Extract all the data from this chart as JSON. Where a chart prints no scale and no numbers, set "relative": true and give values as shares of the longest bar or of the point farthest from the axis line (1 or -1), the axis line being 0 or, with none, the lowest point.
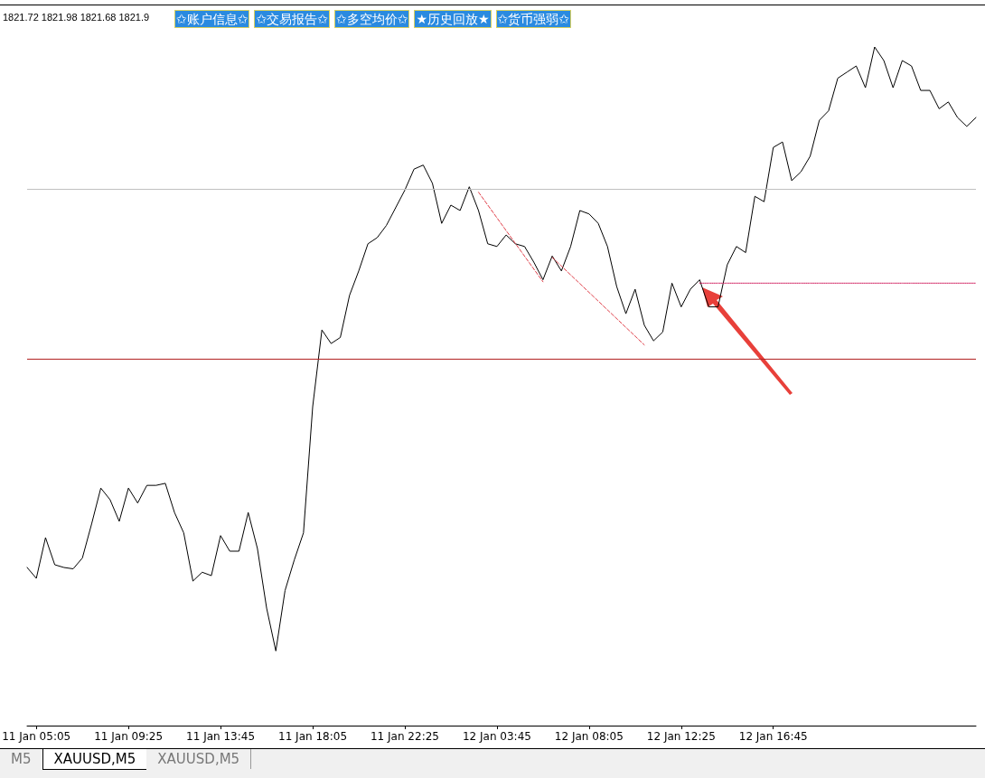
{
  "chart_data": {
    "type": "line",
    "relative": true,
    "grid": false,
    "marker": "none",
    "categories": [
      null,
      "11 Jan 05:05",
      null,
      null,
      null,
      null,
      null,
      null,
      null,
      null,
      null,
      "11 Jan 09:25",
      null,
      null,
      null,
      null,
      null,
      null,
      null,
      null,
      null,
      "11 Jan 13:45",
      null,
      null,
      null,
      null,
      null,
      null,
      null,
      null,
      null,
      "11 Jan 18:05",
      null,
      null,
      null,
      null,
      null,
      null,
      null,
      null,
      null,
      "11 Jan 22:25",
      null,
      null,
      null,
      null,
      null,
      null,
      null,
      null,
      null,
      "12 Jan 03:45",
      null,
      null,
      null,
      null,
      null,
      null,
      null,
      null,
      null,
      "12 Jan 08:05",
      null,
      null,
      null,
      null,
      null,
      null,
      null,
      null,
      null,
      "12 Jan 12:25",
      null,
      null,
      null,
      null,
      null,
      null,
      null,
      null,
      null,
      "12 Jan 16:45",
      null,
      null,
      null,
      null,
      null,
      null,
      null,
      null,
      null,
      null,
      null,
      null,
      null,
      null,
      null,
      null,
      null,
      null,
      null,
      null,
      null,
      null
    ],
    "series": [
      {
        "color": "#000000",
        "values": [
          0.233,
          0.217,
          0.277,
          0.237,
          0.233,
          0.231,
          0.247,
          0.297,
          0.35,
          0.333,
          0.301,
          0.35,
          0.328,
          0.354,
          0.354,
          0.357,
          0.314,
          0.284,
          0.213,
          0.226,
          0.221,
          0.28,
          0.257,
          0.257,
          0.314,
          0.261,
          0.173,
          0.11,
          0.199,
          0.244,
          0.284,
          0.47,
          0.583,
          0.563,
          0.572,
          0.634,
          0.67,
          0.71,
          0.719,
          0.737,
          0.763,
          0.789,
          0.82,
          0.826,
          0.799,
          0.74,
          0.767,
          0.759,
          0.794,
          0.759,
          0.71,
          0.706,
          0.723,
          0.71,
          0.706,
          0.683,
          0.657,
          0.692,
          0.67,
          0.706,
          0.759,
          0.754,
          0.74,
          0.706,
          0.647,
          0.607,
          0.643,
          0.59,
          0.567,
          0.58,
          0.652,
          0.617,
          0.643,
          0.657,
          0.617,
          0.617,
          0.679,
          0.706,
          0.697,
          0.78,
          0.772,
          0.852,
          0.86,
          0.803,
          0.816,
          0.839,
          0.892,
          0.906,
          0.954,
          0.963,
          0.972,
          0.94,
          1,
          0.98,
          0.94,
          0.98,
          0.972,
          0.936,
          0.936,
          0.909,
          0.919,
          0.896,
          0.883,
          0.896
        ]
      },
      {
        "color": "#e0404a",
        "line_style": "dashed",
        "values": [
          null,
          null,
          null,
          null,
          null,
          null,
          null,
          null,
          null,
          null,
          null,
          null,
          null,
          null,
          null,
          null,
          null,
          null,
          null,
          null,
          null,
          null,
          null,
          null,
          null,
          null,
          null,
          null,
          null,
          null,
          null,
          null,
          null,
          null,
          null,
          null,
          null,
          null,
          null,
          null,
          null,
          null,
          null,
          null,
          null,
          null,
          null,
          null,
          null,
          0.786,
          null,
          null,
          null,
          null,
          null,
          null,
          0.654,
          null,
          null,
          null,
          null,
          null,
          null,
          null,
          null,
          null,
          null,
          null,
          null,
          null,
          null,
          null,
          null,
          null,
          null,
          null,
          null,
          null,
          null,
          null,
          null,
          null,
          null,
          null,
          null,
          null,
          null,
          null,
          null,
          null,
          null,
          null,
          null,
          null,
          null,
          null,
          null,
          null,
          null,
          null,
          null,
          null,
          null,
          null
        ]
      },
      {
        "color": "#e0404a",
        "line_style": "dashed",
        "values": [
          null,
          null,
          null,
          null,
          null,
          null,
          null,
          null,
          null,
          null,
          null,
          null,
          null,
          null,
          null,
          null,
          null,
          null,
          null,
          null,
          null,
          null,
          null,
          null,
          null,
          null,
          null,
          null,
          null,
          null,
          null,
          null,
          null,
          null,
          null,
          null,
          null,
          null,
          null,
          null,
          null,
          null,
          null,
          null,
          null,
          null,
          null,
          null,
          null,
          null,
          null,
          null,
          null,
          null,
          null,
          null,
          null,
          0.69,
          null,
          null,
          null,
          null,
          null,
          null,
          null,
          null,
          null,
          0.561,
          null,
          null,
          null,
          null,
          null,
          null,
          null,
          null,
          null,
          null,
          null,
          null,
          null,
          null,
          null,
          null,
          null,
          null,
          null,
          null,
          null,
          null,
          null,
          null,
          null,
          null,
          null,
          null,
          null,
          null,
          null,
          null,
          null,
          null,
          null,
          null
        ]
      },
      {
        "color": "#d02060",
        "line_style": "dotted",
        "values": [
          null,
          null,
          null,
          null,
          null,
          null,
          null,
          null,
          null,
          null,
          null,
          null,
          null,
          null,
          null,
          null,
          null,
          null,
          null,
          null,
          null,
          null,
          null,
          null,
          null,
          null,
          null,
          null,
          null,
          null,
          null,
          null,
          null,
          null,
          null,
          null,
          null,
          null,
          null,
          null,
          null,
          null,
          null,
          null,
          null,
          null,
          null,
          null,
          null,
          null,
          null,
          null,
          null,
          null,
          null,
          null,
          null,
          null,
          null,
          null,
          null,
          null,
          null,
          null,
          null,
          null,
          null,
          null,
          null,
          null,
          null,
          null,
          null,
          0.652,
          0.652,
          0.652,
          0.652,
          0.652,
          0.652,
          0.652,
          0.652,
          0.652,
          0.652,
          0.652,
          0.652,
          0.652,
          0.652,
          0.652,
          0.652,
          0.652,
          0.652,
          0.652,
          0.652,
          0.652,
          0.652,
          0.652,
          0.652,
          0.652,
          0.652,
          0.652,
          0.652,
          0.652,
          0.652,
          0.652
        ]
      }
    ],
    "ref_lines": [
      {
        "axis": "y",
        "value": 0.794,
        "color": "#c0c0c0"
      },
      {
        "axis": "y",
        "value": 0.542,
        "color": "#b22222"
      }
    ],
    "annotations": [
      "1821.72 1821.98 1821.68 1821.9",
      "✩账户信息✩",
      "✩交易报告✩",
      "✩多空均价✩",
      "★历史回放★",
      "✩货币强弱✩",
      "M5",
      "XAUUSD,M5",
      "XAUUSD,M5"
    ]
  }
}
